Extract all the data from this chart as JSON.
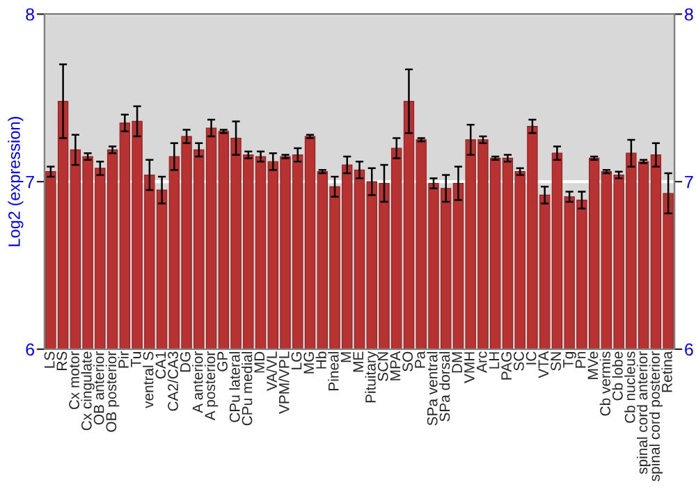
{
  "chart_data": {
    "type": "bar",
    "ylabel": "Log2 (expression)",
    "categories": [
      "LS",
      "RS",
      "Cx motor",
      "Cx cingulate",
      "OB anterior",
      "OB posterior",
      "Pir",
      "Tu",
      "ventral S",
      "CA1",
      "CA2/CA3",
      "DG",
      "A anterior",
      "A posterior",
      "GP",
      "CPu lateral",
      "CPu medial",
      "MD",
      "VA/VL",
      "VPM/VPL",
      "LG",
      "MG",
      "Hb",
      "Pineal",
      "M",
      "ME",
      "Pituitary",
      "SCN",
      "MPA",
      "SO",
      "Pa",
      "SPa ventral",
      "SPa dorsal",
      "DM",
      "VMH",
      "Arc",
      "LH",
      "PAG",
      "SC",
      "IC",
      "VTA",
      "SN",
      "Tg",
      "Pn",
      "MVe",
      "Cb vermis",
      "Cb lobe",
      "Cb nucleus",
      "spinal cord anterior",
      "spinal cord posterior",
      "Retina"
    ],
    "values": [
      7.06,
      7.48,
      7.19,
      7.15,
      7.08,
      7.19,
      7.35,
      7.36,
      7.04,
      6.95,
      7.15,
      7.27,
      7.19,
      7.32,
      7.3,
      7.26,
      7.16,
      7.15,
      7.12,
      7.15,
      7.16,
      7.27,
      7.06,
      6.97,
      7.1,
      7.07,
      7.0,
      6.99,
      7.2,
      7.48,
      7.25,
      6.99,
      6.96,
      6.99,
      7.25,
      7.25,
      7.14,
      7.14,
      7.06,
      7.33,
      6.92,
      7.17,
      6.91,
      6.89,
      7.14,
      7.06,
      7.04,
      7.17,
      7.12,
      7.16,
      6.93
    ],
    "errors": [
      0.03,
      0.22,
      0.09,
      0.02,
      0.04,
      0.02,
      0.05,
      0.09,
      0.09,
      0.08,
      0.08,
      0.04,
      0.04,
      0.05,
      0.01,
      0.1,
      0.02,
      0.03,
      0.05,
      0.01,
      0.04,
      0.01,
      0.01,
      0.06,
      0.05,
      0.05,
      0.08,
      0.11,
      0.06,
      0.19,
      0.01,
      0.03,
      0.08,
      0.1,
      0.09,
      0.02,
      0.01,
      0.02,
      0.02,
      0.04,
      0.05,
      0.04,
      0.03,
      0.05,
      0.01,
      0.01,
      0.02,
      0.08,
      0.01,
      0.07,
      0.12
    ],
    "color": "#b83232",
    "ylim": [
      6,
      8
    ],
    "yticks": [
      6,
      7,
      8
    ],
    "y2lim": [
      6,
      8
    ],
    "y2ticks": [
      6,
      7,
      8
    ],
    "grid": "y",
    "legend": false
  }
}
